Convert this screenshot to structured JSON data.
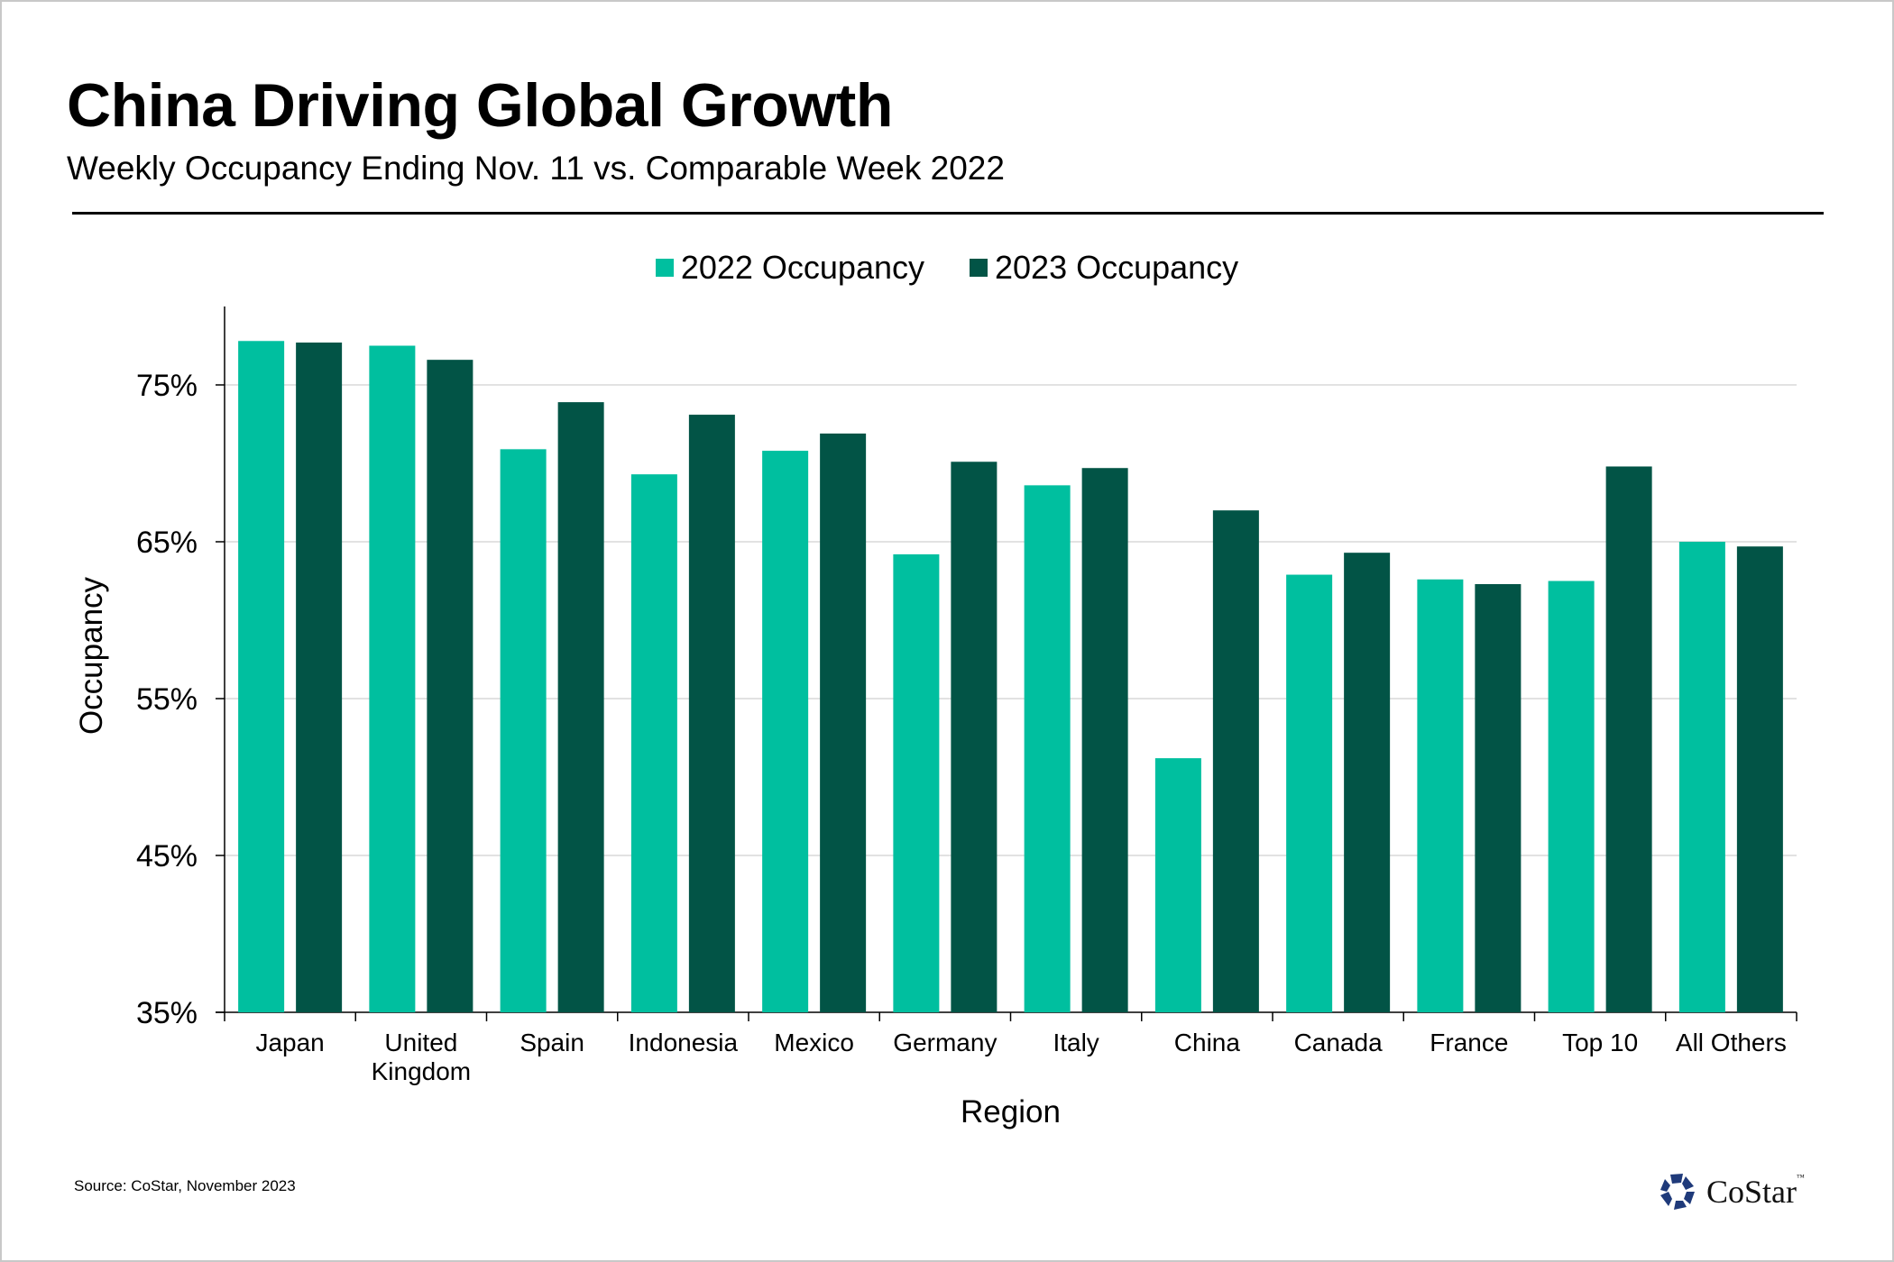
{
  "header": {
    "title": "China Driving Global Growth",
    "subtitle": "Weekly Occupancy Ending Nov. 11 vs. Comparable Week 2022"
  },
  "footer": {
    "source": "Source: CoStar, November 2023",
    "logo_text": "CoStar",
    "logo_tm": "™"
  },
  "colors": {
    "s2022": "#00BF9F",
    "s2023": "#025446",
    "grid": "#d9d9d9",
    "axis": "#000000",
    "logo": "#1f3a7a"
  },
  "chart_data": {
    "type": "bar",
    "title": "China Driving Global Growth",
    "subtitle": "Weekly Occupancy Ending Nov. 11 vs. Comparable Week 2022",
    "xlabel": "Region",
    "ylabel": "Occupancy",
    "ylim": [
      35,
      80
    ],
    "yticks": [
      35,
      45,
      55,
      65,
      75
    ],
    "ytick_labels": [
      "35%",
      "45%",
      "55%",
      "65%",
      "75%"
    ],
    "grid": true,
    "legend_position": "top-center",
    "categories": [
      "Japan",
      "United Kingdom",
      "Spain",
      "Indonesia",
      "Mexico",
      "Germany",
      "Italy",
      "China",
      "Canada",
      "France",
      "Top 10",
      "All Others"
    ],
    "category_labels": [
      [
        "Japan"
      ],
      [
        "United",
        "Kingdom"
      ],
      [
        "Spain"
      ],
      [
        "Indonesia"
      ],
      [
        "Mexico"
      ],
      [
        "Germany"
      ],
      [
        "Italy"
      ],
      [
        "China"
      ],
      [
        "Canada"
      ],
      [
        "France"
      ],
      [
        "Top 10"
      ],
      [
        "All Others"
      ]
    ],
    "series": [
      {
        "name": "2022 Occupancy",
        "values": [
          77.8,
          77.5,
          70.9,
          69.3,
          70.8,
          64.2,
          68.6,
          51.2,
          62.9,
          62.6,
          62.5,
          65.0
        ]
      },
      {
        "name": "2023 Occupancy",
        "values": [
          77.7,
          76.6,
          73.9,
          73.1,
          71.9,
          70.1,
          69.7,
          67.0,
          64.3,
          62.3,
          69.8,
          64.7
        ]
      }
    ]
  }
}
